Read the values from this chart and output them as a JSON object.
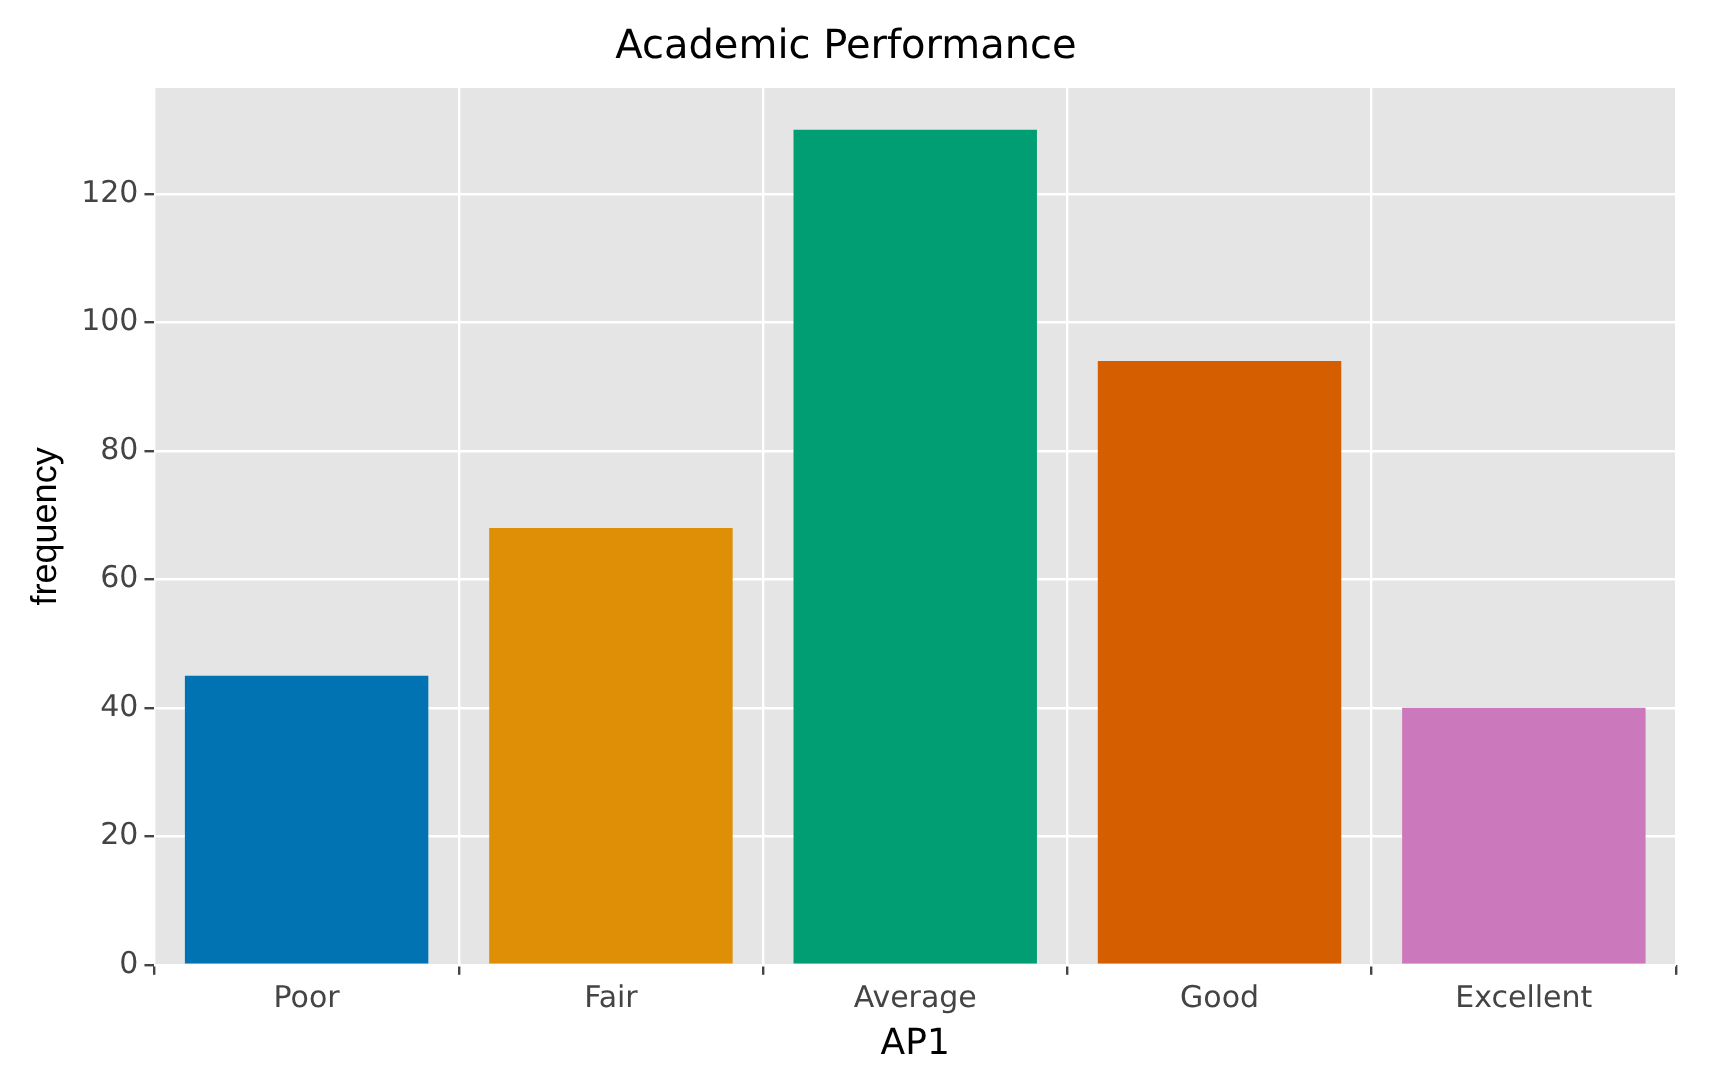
{
  "chart_data": {
    "type": "bar",
    "title": "Academic Performance",
    "xlabel": "AP1",
    "ylabel": "frequency",
    "categories": [
      "Poor",
      "Fair",
      "Average",
      "Good",
      "Excellent"
    ],
    "values": [
      45,
      68,
      130,
      94,
      40
    ],
    "colors": [
      "#0173b2",
      "#de8f05",
      "#029e73",
      "#d55e00",
      "#cc78bc"
    ],
    "ylim": [
      0,
      136.5
    ],
    "yticks": [
      0,
      20,
      40,
      60,
      80,
      100,
      120
    ],
    "grid": true
  }
}
